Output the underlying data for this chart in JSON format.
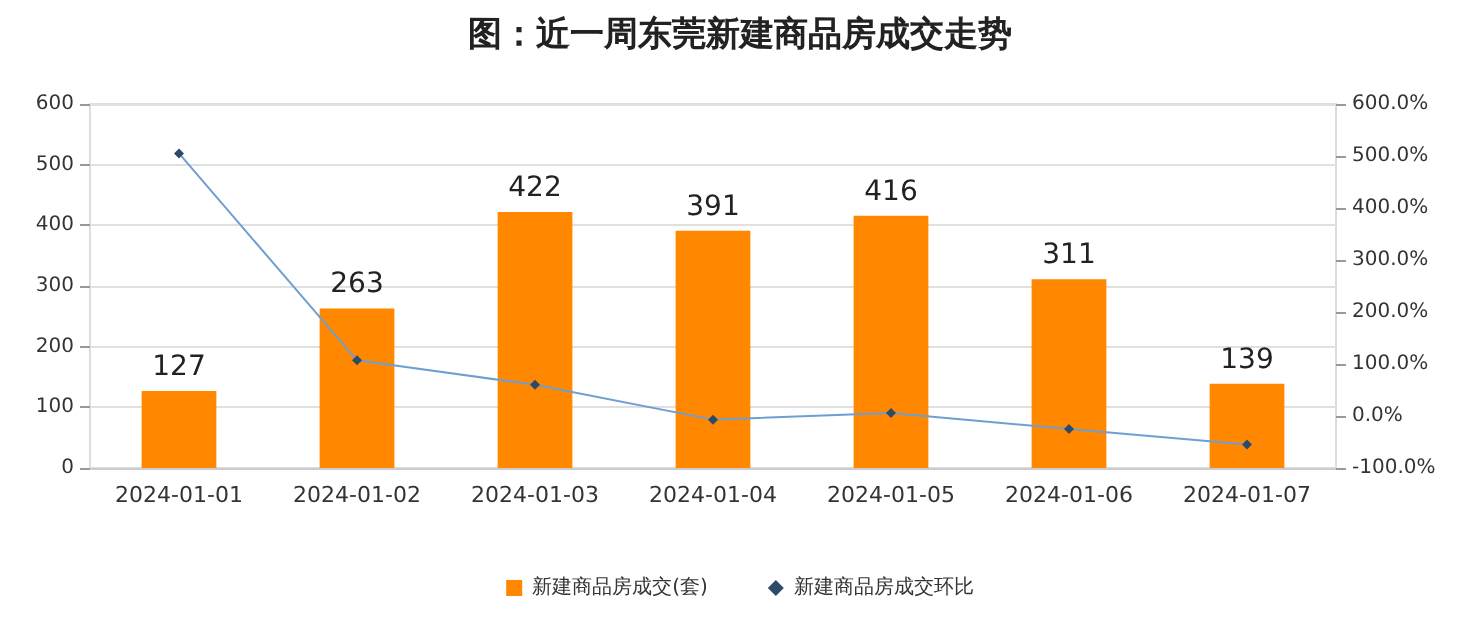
{
  "chart_data": {
    "type": "bar",
    "title": "图：近一周东莞新建商品房成交走势",
    "categories": [
      "2024-01-01",
      "2024-01-02",
      "2024-01-03",
      "2024-01-04",
      "2024-01-05",
      "2024-01-06",
      "2024-01-07"
    ],
    "series": [
      {
        "name": "新建商品房成交(套)",
        "color": "#ff8800",
        "values": [
          127,
          263,
          422,
          391,
          416,
          311,
          139
        ],
        "data_labels": true
      },
      {
        "name": "新建商品房成交环比",
        "type": "line",
        "axis": "y2",
        "color": "#6f9fd0",
        "marker": "diamond",
        "values": [
          505,
          107,
          60,
          -7,
          6,
          -25,
          -55
        ]
      }
    ],
    "ylim": [
      0,
      600
    ],
    "yticks": [
      0,
      100,
      200,
      300,
      400,
      500,
      600
    ],
    "y2lim": [
      -100,
      600
    ],
    "y2ticks": [
      {
        "value": -100,
        "label": "-100.0%"
      },
      {
        "value": 0,
        "label": "0.0%"
      },
      {
        "value": 100,
        "label": "100.0%"
      },
      {
        "value": 200,
        "label": "200.0%"
      },
      {
        "value": 300,
        "label": "300.0%"
      },
      {
        "value": 400,
        "label": "400.0%"
      },
      {
        "value": 500,
        "label": "500.0%"
      },
      {
        "value": 600,
        "label": "600.0%"
      }
    ],
    "grid": "y",
    "legend": "bottom"
  }
}
